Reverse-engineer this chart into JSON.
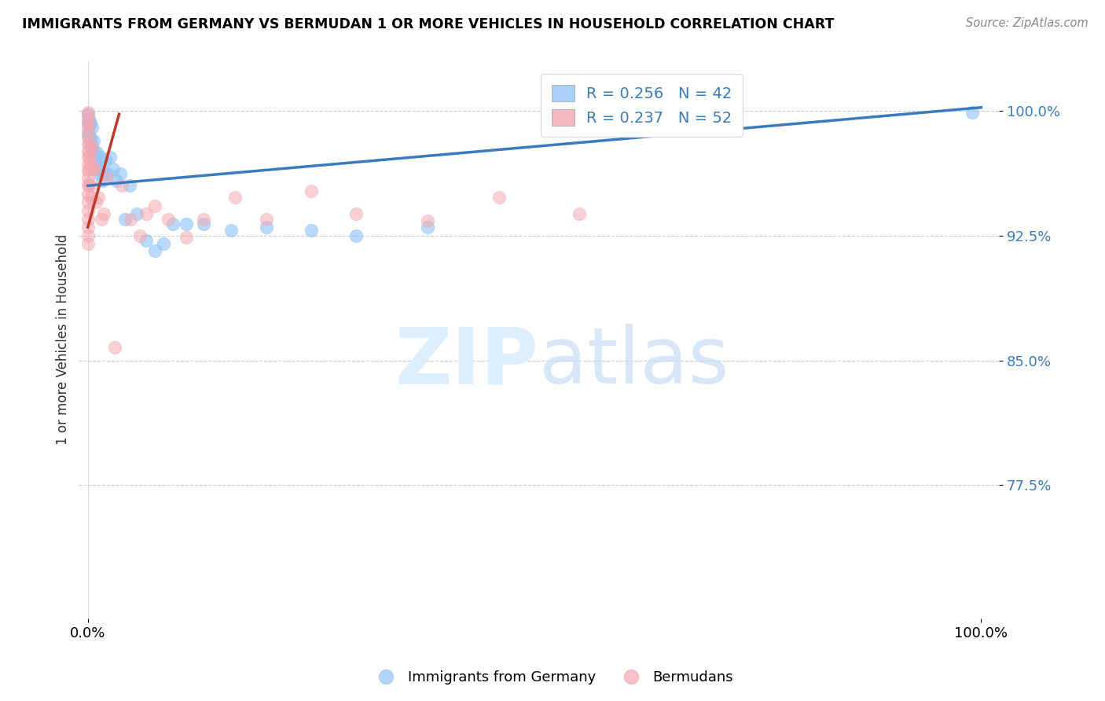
{
  "title": "IMMIGRANTS FROM GERMANY VS BERMUDAN 1 OR MORE VEHICLES IN HOUSEHOLD CORRELATION CHART",
  "source": "Source: ZipAtlas.com",
  "ylabel": "1 or more Vehicles in Household",
  "blue_color": "#92c5f7",
  "pink_color": "#f4a8b0",
  "trend_blue_color": "#3a7bbf",
  "trend_pink_color": "#c0392b",
  "legend_r_blue": "R = 0.256",
  "legend_n_blue": "N = 42",
  "legend_r_pink": "R = 0.237",
  "legend_n_pink": "N = 52",
  "watermark_zip": "ZIP",
  "watermark_atlas": "atlas",
  "blue_scatter_x": [
    0.0,
    0.0,
    0.0,
    0.001,
    0.002,
    0.002,
    0.003,
    0.003,
    0.004,
    0.005,
    0.005,
    0.006,
    0.007,
    0.008,
    0.009,
    0.01,
    0.011,
    0.013,
    0.014,
    0.016,
    0.018,
    0.02,
    0.022,
    0.025,
    0.028,
    0.032,
    0.036,
    0.042,
    0.047,
    0.055,
    0.065,
    0.075,
    0.085,
    0.095,
    0.11,
    0.13,
    0.16,
    0.2,
    0.25,
    0.3,
    0.38,
    0.99
  ],
  "blue_scatter_y": [
    0.998,
    0.993,
    0.986,
    0.995,
    0.992,
    0.985,
    0.993,
    0.983,
    0.98,
    0.99,
    0.978,
    0.982,
    0.975,
    0.972,
    0.968,
    0.975,
    0.965,
    0.962,
    0.972,
    0.958,
    0.962,
    0.97,
    0.962,
    0.972,
    0.965,
    0.958,
    0.962,
    0.935,
    0.955,
    0.938,
    0.922,
    0.916,
    0.92,
    0.932,
    0.932,
    0.932,
    0.928,
    0.93,
    0.928,
    0.925,
    0.93,
    0.999
  ],
  "pink_scatter_x": [
    0.0,
    0.0,
    0.0,
    0.0,
    0.0,
    0.0,
    0.0,
    0.0,
    0.0,
    0.0,
    0.0,
    0.0,
    0.0,
    0.0,
    0.0,
    0.0,
    0.0,
    0.0,
    0.0,
    0.0,
    0.001,
    0.001,
    0.001,
    0.001,
    0.002,
    0.003,
    0.003,
    0.004,
    0.005,
    0.006,
    0.007,
    0.009,
    0.012,
    0.015,
    0.018,
    0.021,
    0.03,
    0.038,
    0.048,
    0.058,
    0.065,
    0.075,
    0.09,
    0.11,
    0.13,
    0.165,
    0.2,
    0.25,
    0.3,
    0.38,
    0.46,
    0.55
  ],
  "pink_scatter_y": [
    0.999,
    0.997,
    0.994,
    0.991,
    0.988,
    0.984,
    0.98,
    0.976,
    0.972,
    0.968,
    0.964,
    0.96,
    0.955,
    0.95,
    0.945,
    0.94,
    0.935,
    0.93,
    0.925,
    0.92,
    0.98,
    0.975,
    0.965,
    0.956,
    0.972,
    0.968,
    0.955,
    0.948,
    0.978,
    0.965,
    0.965,
    0.945,
    0.948,
    0.935,
    0.938,
    0.96,
    0.858,
    0.955,
    0.935,
    0.925,
    0.938,
    0.943,
    0.935,
    0.924,
    0.935,
    0.948,
    0.935,
    0.952,
    0.938,
    0.934,
    0.948,
    0.938
  ],
  "blue_trend_x": [
    0.0,
    1.0
  ],
  "blue_trend_y": [
    0.955,
    1.002
  ],
  "pink_trend_x": [
    0.0,
    0.035
  ],
  "pink_trend_y": [
    0.93,
    0.998
  ],
  "xlim": [
    -0.01,
    1.02
  ],
  "ylim": [
    0.695,
    1.03
  ],
  "yticks": [
    0.775,
    0.85,
    0.925,
    1.0
  ],
  "ytick_labels": [
    "77.5%",
    "85.0%",
    "92.5%",
    "100.0%"
  ],
  "xticks": [
    0.0,
    1.0
  ],
  "xtick_labels": [
    "0.0%",
    "100.0%"
  ]
}
